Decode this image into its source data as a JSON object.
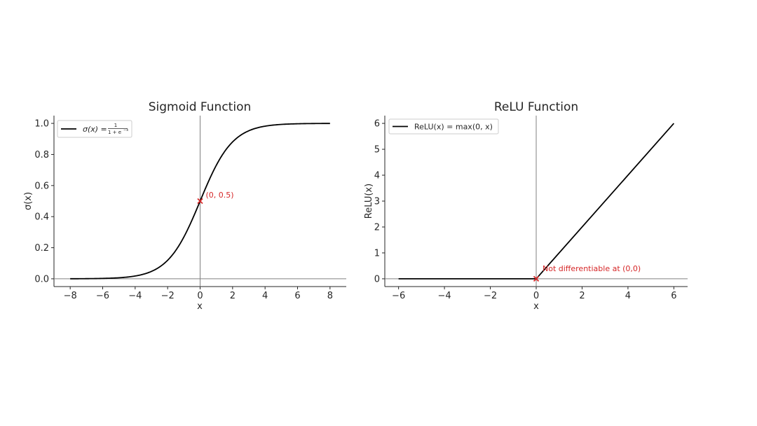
{
  "chart_data": [
    {
      "type": "line",
      "title": "Sigmoid Function",
      "xlabel": "x",
      "ylabel": "σ(x)",
      "xlim": [
        -9,
        9
      ],
      "ylim": [
        -0.05,
        1.05
      ],
      "xticks": [
        -8,
        -6,
        -4,
        -2,
        0,
        2,
        4,
        6,
        8
      ],
      "xtick_labels": [
        "−8",
        "−6",
        "−4",
        "−2",
        "0",
        "2",
        "4",
        "6",
        "8"
      ],
      "yticks": [
        0.0,
        0.2,
        0.4,
        0.6,
        0.8,
        1.0
      ],
      "ytick_labels": [
        "0.0",
        "0.2",
        "0.4",
        "0.6",
        "0.8",
        "1.0"
      ],
      "x": [
        -8,
        -7,
        -6,
        -5,
        -4,
        -3,
        -2,
        -1.5,
        -1,
        -0.5,
        0,
        0.5,
        1,
        1.5,
        2,
        3,
        4,
        5,
        6,
        7,
        8
      ],
      "series": [
        {
          "name": "σ(x) = 1 / (1 + e^−x)",
          "color": "#000000",
          "values": [
            0.0003,
            0.0009,
            0.0025,
            0.0067,
            0.018,
            0.047,
            0.119,
            0.182,
            0.269,
            0.378,
            0.5,
            0.622,
            0.731,
            0.818,
            0.881,
            0.953,
            0.982,
            0.9933,
            0.9975,
            0.9991,
            0.9997
          ]
        }
      ],
      "marker": {
        "x": 0,
        "y": 0.5,
        "color": "#d62728"
      },
      "annotation": "(0, 0.5)",
      "legend": {
        "position": "top-left",
        "prefix": "σ(x) =",
        "numerator": "1",
        "denominator": "1 + e",
        "exponent": "−x"
      },
      "grid": false
    },
    {
      "type": "line",
      "title": "ReLU Function",
      "xlabel": "x",
      "ylabel": "ReLU(x)",
      "xlim": [
        -6.6,
        6.6
      ],
      "ylim": [
        -0.3,
        6.3
      ],
      "xticks": [
        -6,
        -4,
        -2,
        0,
        2,
        4,
        6
      ],
      "xtick_labels": [
        "−6",
        "−4",
        "−2",
        "0",
        "2",
        "4",
        "6"
      ],
      "yticks": [
        0,
        1,
        2,
        3,
        4,
        5,
        6
      ],
      "ytick_labels": [
        "0",
        "1",
        "2",
        "3",
        "4",
        "5",
        "6"
      ],
      "x": [
        -6,
        0,
        6
      ],
      "series": [
        {
          "name": "ReLU(x) = max(0, x)",
          "color": "#000000",
          "values": [
            0,
            0,
            6
          ]
        }
      ],
      "marker": {
        "x": 0,
        "y": 0,
        "color": "#d62728"
      },
      "annotation": "Not differentiable at (0,0)",
      "legend": {
        "position": "top-left"
      },
      "grid": false
    }
  ]
}
